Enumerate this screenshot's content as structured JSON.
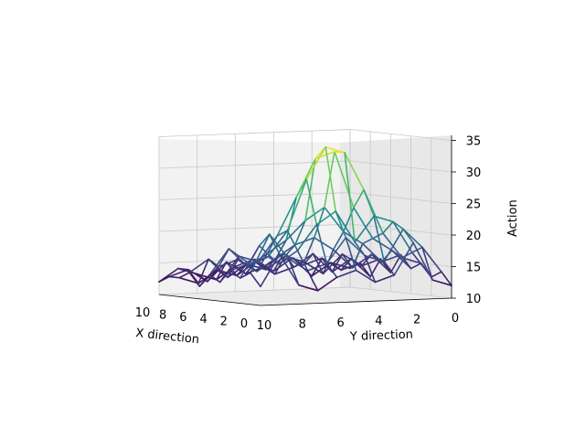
{
  "chart_data": {
    "type": "surface-3d-wireframe",
    "xlabel": "X direction",
    "ylabel": "Y direction",
    "zlabel": "Action",
    "x_ticks": [
      "10",
      "8",
      "6",
      "4",
      "2",
      "0"
    ],
    "y_ticks": [
      "10",
      "8",
      "6",
      "4",
      "2",
      "0"
    ],
    "z_ticks": [
      "10",
      "15",
      "20",
      "25",
      "30",
      "35"
    ],
    "xlim": [
      0,
      10
    ],
    "ylim": [
      0,
      10
    ],
    "zlim": [
      10,
      35
    ],
    "colormap": [
      "#440154",
      "#3b528b",
      "#21918c",
      "#5ec962",
      "#fde725"
    ],
    "z_rows": [
      [
        12,
        13,
        19,
        14,
        13,
        15,
        14,
        12,
        13,
        18,
        13
      ],
      [
        14,
        18,
        21,
        16,
        17,
        20,
        16,
        15,
        17,
        21,
        15
      ],
      [
        13,
        17,
        22,
        23,
        19,
        24,
        22,
        18,
        16,
        19,
        14
      ],
      [
        15,
        16,
        20,
        27,
        33,
        34,
        29,
        21,
        17,
        16,
        15
      ],
      [
        14,
        17,
        19,
        24,
        33,
        32,
        26,
        20,
        16,
        17,
        13
      ],
      [
        16,
        15,
        18,
        20,
        24,
        22,
        19,
        17,
        15,
        18,
        14
      ],
      [
        13,
        16,
        14,
        17,
        19,
        18,
        16,
        14,
        16,
        15,
        12
      ],
      [
        15,
        14,
        16,
        13,
        15,
        16,
        14,
        15,
        13,
        16,
        14
      ],
      [
        12,
        15,
        13,
        16,
        14,
        13,
        15,
        13,
        14,
        12,
        13
      ],
      [
        14,
        13,
        15,
        14,
        16,
        14,
        13,
        15,
        12,
        14,
        13
      ],
      [
        13,
        14,
        12,
        15,
        13,
        15,
        14,
        12,
        13,
        14,
        12
      ]
    ]
  }
}
